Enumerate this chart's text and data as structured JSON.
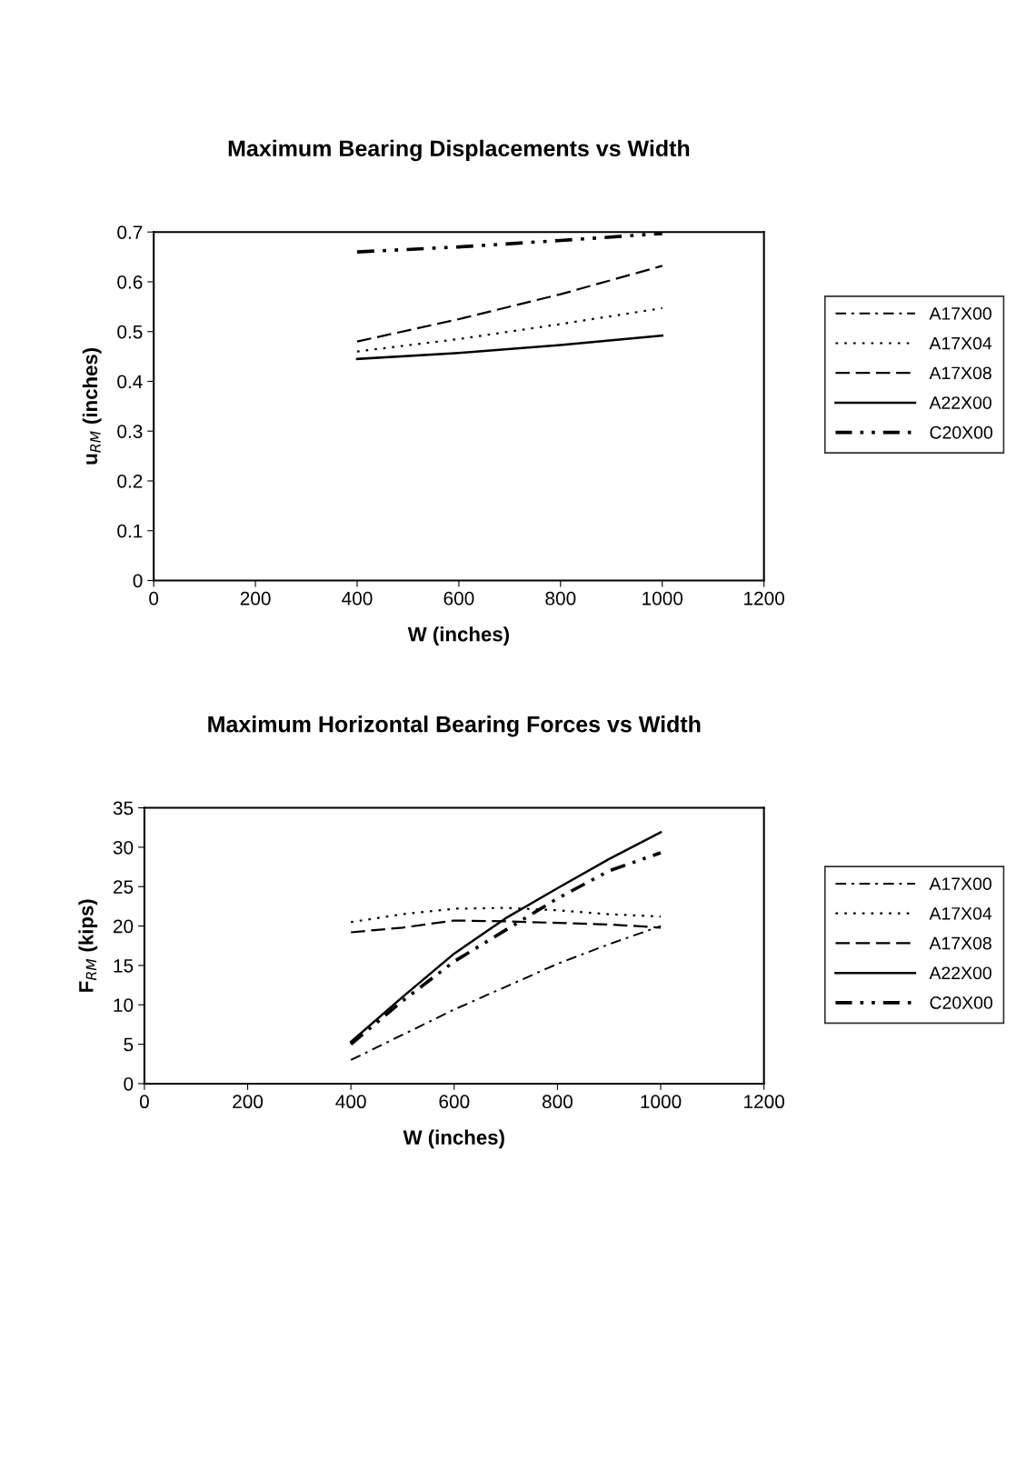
{
  "chart_data": [
    {
      "type": "line",
      "title": "Maximum Bearing Displacements vs Width",
      "xlabel": "W (inches)",
      "ylabel": "u$_{RM}$ (inches)",
      "x": [
        400,
        600,
        800,
        1000
      ],
      "xlim": [
        0,
        1200
      ],
      "xticks": [
        0,
        200,
        400,
        600,
        800,
        1000,
        1200
      ],
      "ylim": [
        0,
        0.7
      ],
      "yticks": [
        0,
        0.1,
        0.2,
        0.3,
        0.4,
        0.5,
        0.6,
        0.7
      ],
      "grid": false,
      "legend": "right",
      "marker": "none",
      "series": [
        {
          "name": "A17X00",
          "color": "#000000",
          "line_style": "dashdot",
          "values": [
            null,
            null,
            null,
            null
          ]
        },
        {
          "name": "A17X04",
          "color": "#000000",
          "line_style": "dotted",
          "values": [
            0.46,
            0.485,
            0.515,
            0.547
          ]
        },
        {
          "name": "A17X08",
          "color": "#000000",
          "line_style": "dashed",
          "values": [
            0.48,
            0.525,
            0.575,
            0.632
          ]
        },
        {
          "name": "A22X00",
          "color": "#000000",
          "line_style": "solid",
          "values": [
            0.445,
            0.457,
            0.473,
            0.492
          ]
        },
        {
          "name": "C20X00",
          "color": "#000000",
          "line_style": "dashdotdot",
          "values": [
            0.66,
            0.67,
            0.683,
            0.697
          ]
        }
      ]
    },
    {
      "type": "line",
      "title": "Maximum Horizontal Bearing Forces vs Width",
      "xlabel": "W (inches)",
      "ylabel": "F$_{RM}$ (kips)",
      "x": [
        400,
        500,
        600,
        700,
        800,
        900,
        1000
      ],
      "xlim": [
        0,
        1200
      ],
      "xticks": [
        0,
        200,
        400,
        600,
        800,
        1000,
        1200
      ],
      "ylim": [
        0,
        35
      ],
      "yticks": [
        0,
        5,
        10,
        15,
        20,
        25,
        30,
        35
      ],
      "grid": false,
      "legend": "right",
      "marker": "none",
      "series": [
        {
          "name": "A17X00",
          "color": "#000000",
          "line_style": "dashdot",
          "values": [
            3.0,
            6.2,
            9.4,
            12.3,
            15.2,
            17.7,
            20.0
          ]
        },
        {
          "name": "A17X04",
          "color": "#000000",
          "line_style": "dotted",
          "values": [
            20.5,
            21.5,
            22.2,
            22.3,
            22.0,
            21.5,
            21.2
          ]
        },
        {
          "name": "A17X08",
          "color": "#000000",
          "line_style": "dashed",
          "values": [
            19.2,
            19.8,
            20.7,
            20.6,
            20.4,
            20.2,
            19.8
          ]
        },
        {
          "name": "A22X00",
          "color": "#000000",
          "line_style": "solid",
          "values": [
            5.3,
            11.0,
            16.5,
            21.0,
            24.8,
            28.5,
            31.9
          ]
        },
        {
          "name": "C20X00",
          "color": "#000000",
          "line_style": "dashdotdot",
          "values": [
            5.0,
            10.5,
            15.5,
            19.5,
            23.5,
            27.0,
            29.3
          ]
        }
      ]
    }
  ]
}
